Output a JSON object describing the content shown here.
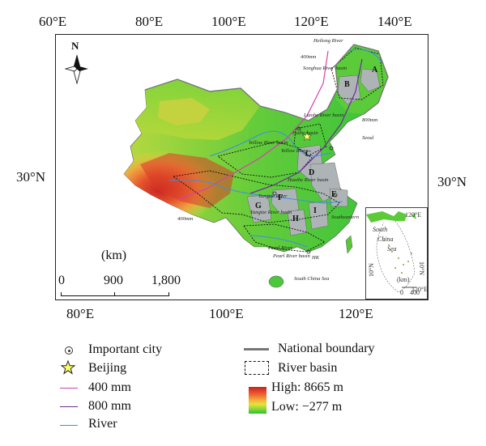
{
  "top_axis": [
    "60°E",
    "80°E",
    "100°E",
    "120°E",
    "140°E"
  ],
  "bottom_axis": [
    "80°E",
    "100°E",
    "120°E"
  ],
  "left_lat": "30°N",
  "right_lat": "30°N",
  "north_arrow": "N",
  "scale": {
    "unit": "(km)",
    "ticks": [
      "0",
      "900",
      "1,800"
    ]
  },
  "region_letters": [
    "A",
    "B",
    "C",
    "D",
    "E",
    "F",
    "G",
    "H",
    "I"
  ],
  "map_labels": {
    "heilong": "Heilong River",
    "songhua": "Songhua River basin",
    "liaohe": "Liaohe River basin",
    "haihe": "Haihe basin",
    "yellow_basin": "Yellow River basin",
    "yellow_river": "Yellow River",
    "huai": "Huaihe River basin",
    "yangtze": "Yangtze River",
    "yangtze_basin": "Yangtze River basin",
    "southeast": "Southeastern",
    "pearl": "Pearl River",
    "pearl_basin": "Pearl River basin",
    "south_china_sea": "South China Sea",
    "iso400_a": "400mm",
    "iso800_a": "800mm",
    "iso400_b": "400mm",
    "hk": "HK",
    "seoul": "Seoul"
  },
  "inset": {
    "top_lon": "120°E",
    "south": "South",
    "china": "China",
    "sea": "Sea",
    "lat_left": "10°N",
    "lat_right": "10°N",
    "km": "(km)",
    "scale_ticks": [
      "0",
      "400"
    ],
    "bottom_lon": "120°E"
  },
  "legend": {
    "city": "Important city",
    "beijing": "Beijing",
    "mm400": "400 mm",
    "mm800": "800 mm",
    "river": "River",
    "national_boundary": "National boundary",
    "river_basin": "River basin",
    "high": "High: 8665 m",
    "low": "Low: −277 m"
  },
  "colors": {
    "mm400": "#d63fb0",
    "mm800": "#6a2a9e",
    "river": "#3d8fe0",
    "boundary": "#777777",
    "high_elev": "#c62222",
    "low_elev": "#22c42a"
  }
}
